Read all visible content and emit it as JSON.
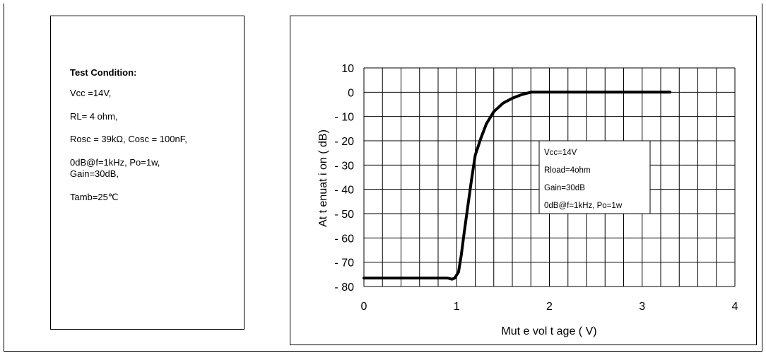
{
  "test_condition": {
    "title": "Test Condition:",
    "lines": [
      "Vcc =14V,",
      "RL= 4 ohm,",
      "Rosc = 39kΩ, Cosc = 100nF,",
      "0dB@f=1kHz, Po=1w,\nGain=30dB,",
      "Tamb=25℃"
    ]
  },
  "chart_data": {
    "type": "line",
    "xlabel": "Mut e vol t age ( V)",
    "ylabel": "At t enuat i on ( dB)",
    "xlim": [
      0,
      4
    ],
    "ylim": [
      -80,
      10
    ],
    "x_ticks": [
      0,
      1,
      2,
      3,
      4
    ],
    "x_tick_labels": [
      "0",
      "1",
      "2",
      "3",
      "4"
    ],
    "y_ticks": [
      10,
      0,
      -10,
      -20,
      -30,
      -40,
      -50,
      -60,
      -70,
      -80
    ],
    "y_tick_labels": [
      "10",
      "0",
      "- 10",
      "- 20",
      "- 30",
      "- 40",
      "- 50",
      "- 60",
      "- 70",
      "- 80"
    ],
    "grid": true,
    "series": [
      {
        "color": "#000000",
        "x": [
          0,
          0.9,
          0.95,
          0.98,
          1.02,
          1.05,
          1.08,
          1.12,
          1.16,
          1.2,
          1.26,
          1.32,
          1.4,
          1.5,
          1.6,
          1.7,
          1.75,
          1.8,
          1.9,
          2.0,
          2.5,
          3.0,
          3.3
        ],
        "y": [
          -76.5,
          -76.5,
          -77,
          -76.5,
          -74,
          -67,
          -58,
          -47,
          -36,
          -26,
          -19,
          -13,
          -8,
          -4.5,
          -2.5,
          -1,
          -0.5,
          0,
          0,
          0,
          0,
          0,
          0
        ]
      }
    ],
    "annotation": {
      "lines": [
        "Vcc=14V",
        "Rload=4ohm",
        "Gain=30dB",
        "0dB@f=1kHz, Po=1w"
      ]
    }
  }
}
